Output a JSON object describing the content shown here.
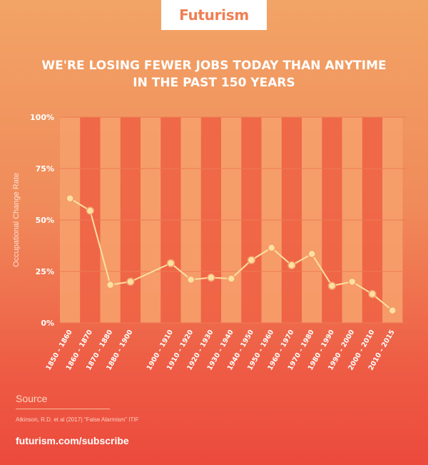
{
  "logo": "Futurism",
  "title": [
    "WE'RE LOSING FEWER JOBS TODAY THAN ANYTIME",
    "IN THE PAST 150 YEARS"
  ],
  "footer": {
    "source_heading": "Source",
    "source_text": "Atkinson, R.D. et al (2017) “False Alarmism” ITIF",
    "subscribe": "futurism.com/subscribe"
  },
  "colors": {
    "line": "#fbe0a2",
    "point_fill": "#fbe0a2",
    "point_stroke": "#f59a65",
    "band_light": "#f6a06c",
    "band_dark": "#ee6446",
    "grid": "#ee7a55"
  },
  "chart_data": {
    "type": "line",
    "categories": [
      "1850 - 1860",
      "1860 - 1870",
      "1870 - 1880",
      "1880 - 1900",
      "1900 - 1910",
      "1910 - 1920",
      "1920 - 1930",
      "1930 - 1940",
      "1940 - 1950",
      "1950 - 1960",
      "1960 - 1970",
      "1970 - 1980",
      "1980 - 1990",
      "1990 - 2000",
      "2000 - 2010",
      "2010 - 2015"
    ],
    "x_start": [
      1850,
      1860,
      1870,
      1880,
      1900,
      1910,
      1920,
      1930,
      1940,
      1950,
      1960,
      1970,
      1980,
      1990,
      2000,
      2010
    ],
    "series": [
      {
        "values": [
          60.5,
          54.5,
          18.5,
          20,
          29,
          21,
          22,
          21.5,
          30.5,
          36.5,
          28,
          33.5,
          18,
          20,
          14,
          6
        ]
      }
    ],
    "xlabel": "",
    "ylabel": "Occupational Change Rate",
    "ylim": [
      0,
      100
    ],
    "yticks": [
      0,
      25,
      50,
      75,
      100
    ],
    "ytick_labels": [
      "0%",
      "25%",
      "50%",
      "75%",
      "100%"
    ],
    "grid": true,
    "legend": "none"
  }
}
